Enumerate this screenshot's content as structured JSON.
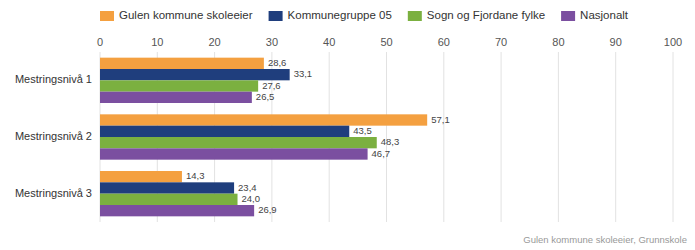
{
  "chart_data": {
    "type": "bar",
    "orientation": "horizontal",
    "categories": [
      "Mestringsnivå 1",
      "Mestringsnivå 2",
      "Mestringsnivå 3"
    ],
    "series": [
      {
        "name": "Gulen kommune skoleeier",
        "color": "#F4A040",
        "values": [
          28.6,
          57.1,
          14.3
        ],
        "value_labels": [
          "28,6",
          "57,1",
          "14,3"
        ]
      },
      {
        "name": "Kommunegruppe 05",
        "color": "#1F3E7D",
        "values": [
          33.1,
          43.5,
          23.4
        ],
        "value_labels": [
          "33,1",
          "43,5",
          "23,4"
        ]
      },
      {
        "name": "Sogn og Fjordane fylke",
        "color": "#7BB040",
        "values": [
          27.6,
          48.3,
          24.0
        ],
        "value_labels": [
          "27,6",
          "48,3",
          "24,0"
        ]
      },
      {
        "name": "Nasjonalt",
        "color": "#7B4FA0",
        "values": [
          26.5,
          46.7,
          26.9
        ],
        "value_labels": [
          "26,5",
          "46,7",
          "26,9"
        ]
      }
    ],
    "xlim": [
      0,
      100
    ],
    "xticks": [
      0,
      10,
      20,
      30,
      40,
      50,
      60,
      70,
      80,
      90,
      100
    ],
    "grid": true,
    "data_labels": true,
    "legend": "top",
    "annotations": [
      "Gulen kommune skoleeier, Grunnskole"
    ]
  }
}
